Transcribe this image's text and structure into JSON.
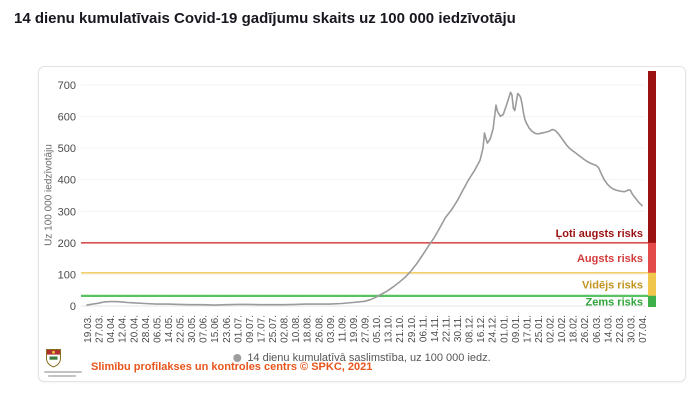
{
  "page": {
    "title": "14 dienu kumulatīvais Covid-19 gadījumu skaits uz 100 000 iedzīvotāju"
  },
  "legend": {
    "marker_color": "#9e9e9e",
    "label": "14 dienu kumulatīvā saslimstība, uz 100 000 iedz."
  },
  "footer": {
    "source": "Slimību profilakses un kontroles centrs © SPKC, 2021",
    "color": "#e8551c"
  },
  "chart_data": {
    "type": "line",
    "title": "14 dienu kumulatīvais Covid-19 gadījumu skaits uz 100 000 iedzīvotāju",
    "ylabel": "Uz 100 000 iedzīvotāju",
    "ylim": [
      0,
      700
    ],
    "yticks": [
      0,
      100,
      200,
      300,
      400,
      500,
      600,
      700
    ],
    "grid": true,
    "legend_position": "bottom",
    "tick_interval_days": 8,
    "x_tick_labels": [
      "19.03.",
      "27.03.",
      "04.04.",
      "12.04.",
      "20.04.",
      "28.04.",
      "06.05.",
      "14.05.",
      "22.05.",
      "30.05.",
      "07.06.",
      "15.06.",
      "23.06.",
      "01.07.",
      "09.07.",
      "17.07.",
      "25.07.",
      "02.08.",
      "10.08.",
      "18.08.",
      "26.08.",
      "03.09.",
      "11.09.",
      "19.09.",
      "27.09.",
      "05.10.",
      "13.10.",
      "21.10.",
      "29.10.",
      "06.11.",
      "14.11.",
      "22.11.",
      "30.11.",
      "08.12.",
      "16.12.",
      "24.12.",
      "01.01.",
      "09.01.",
      "17.01.",
      "25.01.",
      "02.02.",
      "10.02.",
      "18.02.",
      "26.02.",
      "06.03.",
      "14.03.",
      "22.03.",
      "30.03.",
      "07.04."
    ],
    "series": [
      {
        "name": "14 dienu kumulatīvā saslimstība, uz 100 000 iedz.",
        "color": "#9b9b9b",
        "points": [
          [
            0,
            3
          ],
          [
            4,
            6
          ],
          [
            8,
            9
          ],
          [
            12,
            13
          ],
          [
            16,
            14
          ],
          [
            20,
            14
          ],
          [
            24,
            13
          ],
          [
            28,
            11
          ],
          [
            32,
            10
          ],
          [
            40,
            8
          ],
          [
            48,
            6
          ],
          [
            56,
            6
          ],
          [
            64,
            5
          ],
          [
            72,
            4
          ],
          [
            80,
            4
          ],
          [
            88,
            3
          ],
          [
            96,
            4
          ],
          [
            104,
            5
          ],
          [
            112,
            5
          ],
          [
            120,
            4
          ],
          [
            128,
            4
          ],
          [
            136,
            4
          ],
          [
            144,
            5
          ],
          [
            152,
            6
          ],
          [
            160,
            6
          ],
          [
            168,
            6
          ],
          [
            176,
            8
          ],
          [
            184,
            11
          ],
          [
            192,
            15
          ],
          [
            196,
            20
          ],
          [
            200,
            28
          ],
          [
            204,
            38
          ],
          [
            208,
            48
          ],
          [
            212,
            61
          ],
          [
            216,
            75
          ],
          [
            220,
            91
          ],
          [
            224,
            110
          ],
          [
            228,
            133
          ],
          [
            232,
            160
          ],
          [
            236,
            188
          ],
          [
            240,
            215
          ],
          [
            244,
            247
          ],
          [
            248,
            280
          ],
          [
            252,
            303
          ],
          [
            256,
            332
          ],
          [
            260,
            366
          ],
          [
            264,
            400
          ],
          [
            268,
            428
          ],
          [
            272,
            462
          ],
          [
            274,
            500
          ],
          [
            275,
            548
          ],
          [
            276,
            531
          ],
          [
            277,
            516
          ],
          [
            279,
            529
          ],
          [
            281,
            561
          ],
          [
            283,
            636
          ],
          [
            284,
            616
          ],
          [
            286,
            601
          ],
          [
            288,
            607
          ],
          [
            290,
            633
          ],
          [
            292,
            661
          ],
          [
            293,
            677
          ],
          [
            294,
            669
          ],
          [
            295,
            626
          ],
          [
            296,
            619
          ],
          [
            297,
            646
          ],
          [
            298,
            673
          ],
          [
            299,
            669
          ],
          [
            300,
            661
          ],
          [
            301,
            641
          ],
          [
            302,
            611
          ],
          [
            303,
            591
          ],
          [
            304,
            579
          ],
          [
            306,
            563
          ],
          [
            308,
            553
          ],
          [
            310,
            547
          ],
          [
            312,
            545
          ],
          [
            314,
            547
          ],
          [
            316,
            549
          ],
          [
            318,
            551
          ],
          [
            320,
            554
          ],
          [
            322,
            559
          ],
          [
            324,
            556
          ],
          [
            326,
            546
          ],
          [
            328,
            534
          ],
          [
            330,
            521
          ],
          [
            332,
            509
          ],
          [
            334,
            499
          ],
          [
            336,
            492
          ],
          [
            338,
            485
          ],
          [
            340,
            478
          ],
          [
            342,
            471
          ],
          [
            344,
            464
          ],
          [
            346,
            458
          ],
          [
            348,
            453
          ],
          [
            350,
            449
          ],
          [
            352,
            446
          ],
          [
            354,
            438
          ],
          [
            356,
            417
          ],
          [
            358,
            399
          ],
          [
            360,
            386
          ],
          [
            362,
            377
          ],
          [
            364,
            371
          ],
          [
            366,
            367
          ],
          [
            368,
            365
          ],
          [
            370,
            363
          ],
          [
            372,
            362
          ],
          [
            374,
            366
          ],
          [
            375,
            368
          ],
          [
            376,
            366
          ],
          [
            377,
            357
          ],
          [
            378,
            350
          ],
          [
            380,
            339
          ],
          [
            382,
            327
          ],
          [
            384,
            318
          ]
        ]
      }
    ],
    "risk_levels": [
      {
        "label": "Ļoti augsts risks",
        "min": 200,
        "max": 700,
        "bar_color": "#9b1111",
        "label_color": "#9b1111",
        "boundary_line_color": null,
        "line_width": 0
      },
      {
        "label": "Augsts risks",
        "min": 105,
        "max": 200,
        "bar_color": "#e34a4a",
        "label_color": "#d43b3b",
        "boundary_line_color": "#d94f4f",
        "line_width": 1.6
      },
      {
        "label": "Vidējs risks",
        "min": 32,
        "max": 105,
        "bar_color": "#f0c64d",
        "label_color": "#c2931d",
        "boundary_line_color": "#f2d06b",
        "line_width": 1.6
      },
      {
        "label": "Zems risks",
        "min": 0,
        "max": 32,
        "bar_color": "#3eb049",
        "label_color": "#2fa43a",
        "boundary_line_color": "#58c263",
        "line_width": 2.2
      }
    ]
  }
}
